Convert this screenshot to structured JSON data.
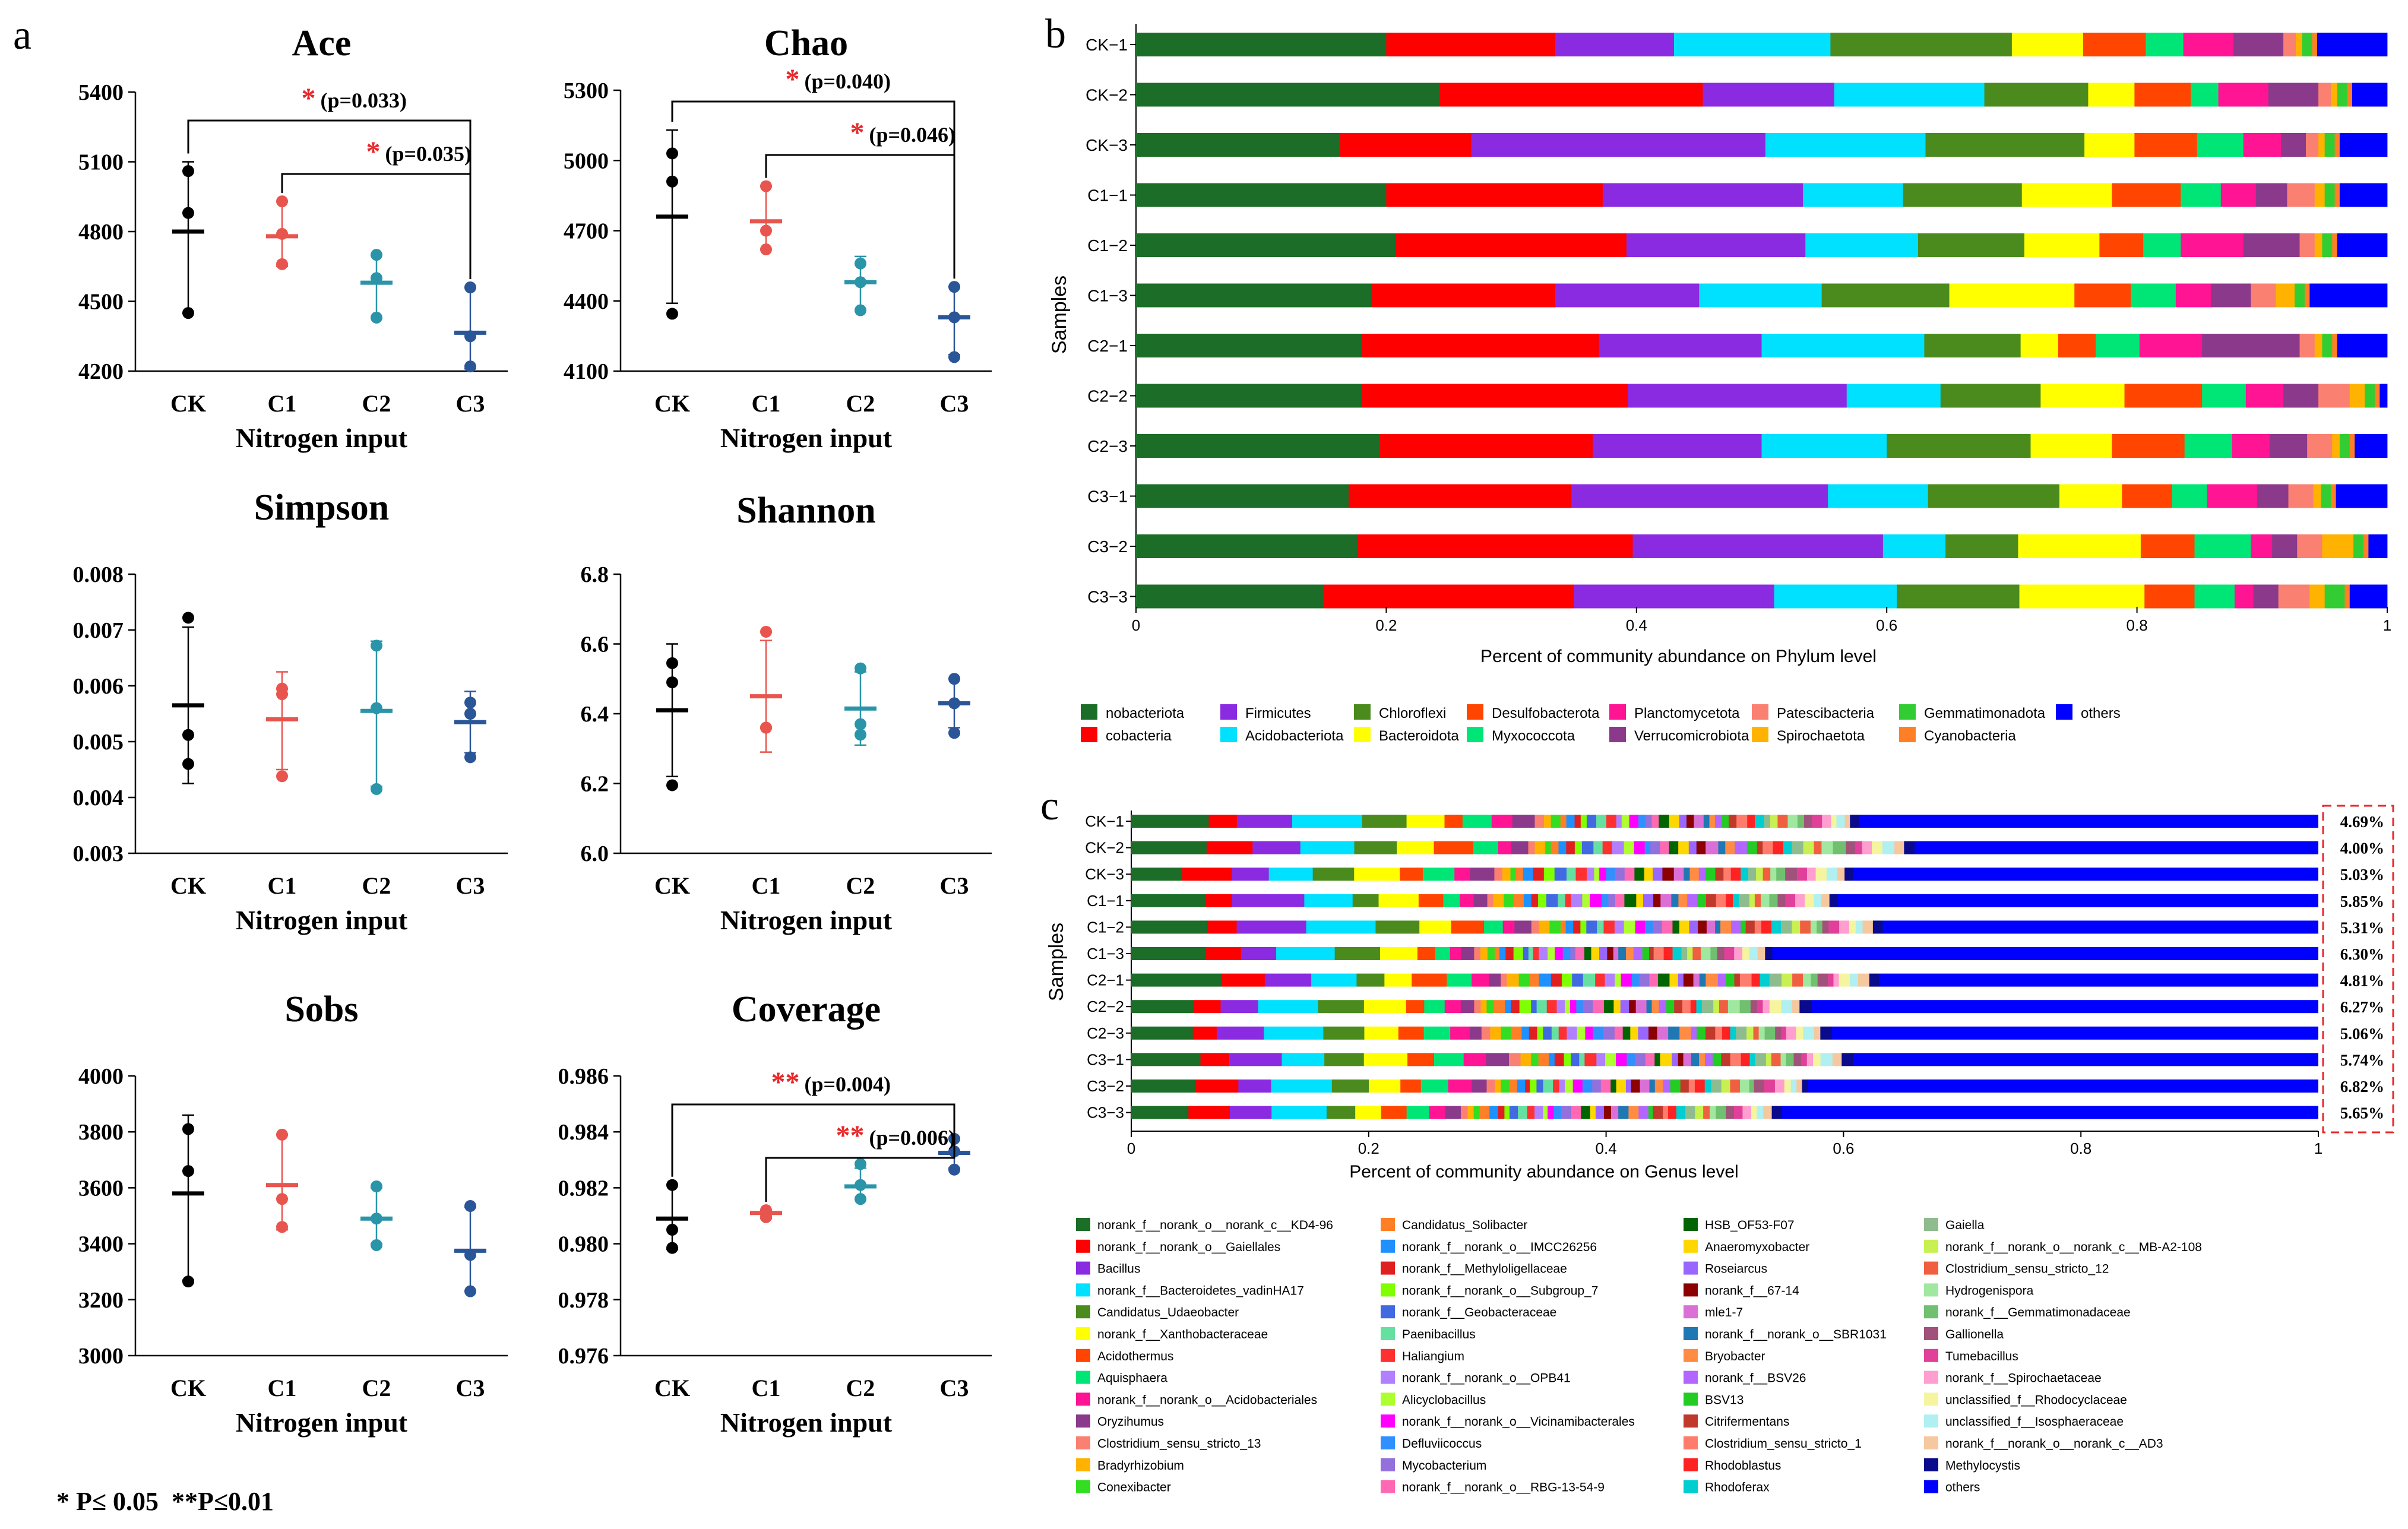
{
  "panel_labels": {
    "a": "a",
    "b": "b",
    "c": "c"
  },
  "footnote": "* P≤ 0.05  **P≤0.01",
  "diversity": {
    "groups": [
      "CK",
      "C1",
      "C2",
      "C3"
    ],
    "group_colors": [
      "#000000",
      "#e8554e",
      "#2a94a8",
      "#2a5597"
    ],
    "xlabel": "Nitrogen input",
    "sig_color": "#e8272a"
  },
  "chart_data": [
    {
      "type": "scatter",
      "title": "Ace",
      "ylim": [
        4200,
        5400
      ],
      "yticks": [
        "4200",
        "4500",
        "4800",
        "5100",
        "5400"
      ],
      "xlabel": "Nitrogen input",
      "categories": [
        "CK",
        "C1",
        "C2",
        "C3"
      ],
      "means": [
        4800,
        4780,
        4580,
        4365
      ],
      "errors": [
        [
          4450,
          5100
        ],
        [
          4650,
          4930
        ],
        [
          4430,
          4700
        ],
        [
          4210,
          4560
        ]
      ],
      "points": [
        [
          4450,
          4880,
          5060
        ],
        [
          4660,
          4790,
          4930
        ],
        [
          4430,
          4600,
          4700
        ],
        [
          4220,
          4350,
          4560
        ]
      ],
      "significance": [
        {
          "from": 0,
          "to": 3,
          "stars": "*",
          "label": "(p=0.033)"
        },
        {
          "from": 1,
          "to": 3,
          "stars": "*",
          "label": "(p=0.035)"
        }
      ]
    },
    {
      "type": "scatter",
      "title": "Chao",
      "ylim": [
        4100,
        5300
      ],
      "yticks": [
        "4100",
        "4400",
        "4700",
        "5000",
        "5300"
      ],
      "xlabel": "Nitrogen input",
      "categories": [
        "CK",
        "C1",
        "C2",
        "C3"
      ],
      "means": [
        4760,
        4740,
        4480,
        4330
      ],
      "errors": [
        [
          4390,
          5130
        ],
        [
          4620,
          4890
        ],
        [
          4360,
          4590
        ],
        [
          4170,
          4460
        ]
      ],
      "points": [
        [
          4345,
          4910,
          5030
        ],
        [
          4620,
          4700,
          4890
        ],
        [
          4360,
          4480,
          4560
        ],
        [
          4160,
          4330,
          4460
        ]
      ],
      "significance": [
        {
          "from": 0,
          "to": 3,
          "stars": "*",
          "label": "(p=0.040)"
        },
        {
          "from": 1,
          "to": 3,
          "stars": "*",
          "label": "(p=0.046)"
        }
      ]
    },
    {
      "type": "scatter",
      "title": "Simpson",
      "ylim": [
        0.003,
        0.008
      ],
      "yticks": [
        "0.003",
        "0.004",
        "0.005",
        "0.006",
        "0.007",
        "0.008"
      ],
      "xlabel": "Nitrogen input",
      "categories": [
        "CK",
        "C1",
        "C2",
        "C3"
      ],
      "means": [
        0.00565,
        0.0054,
        0.00555,
        0.00535
      ],
      "errors": [
        [
          0.00425,
          0.00705
        ],
        [
          0.0045,
          0.00625
        ],
        [
          0.0042,
          0.0068
        ],
        [
          0.0048,
          0.0059
        ]
      ],
      "points": [
        [
          0.0046,
          0.00512,
          0.00722
        ],
        [
          0.00438,
          0.00585,
          0.00595
        ],
        [
          0.00415,
          0.0056,
          0.00672
        ],
        [
          0.00472,
          0.0055,
          0.0057
        ]
      ],
      "significance": []
    },
    {
      "type": "scatter",
      "title": "Shannon",
      "ylim": [
        6.0,
        6.8
      ],
      "yticks": [
        "6.0",
        "6.2",
        "6.4",
        "6.6",
        "6.8"
      ],
      "xlabel": "Nitrogen input",
      "categories": [
        "CK",
        "C1",
        "C2",
        "C3"
      ],
      "means": [
        6.41,
        6.45,
        6.415,
        6.43
      ],
      "errors": [
        [
          6.22,
          6.6
        ],
        [
          6.29,
          6.61
        ],
        [
          6.31,
          6.52
        ],
        [
          6.36,
          6.5
        ]
      ],
      "points": [
        [
          6.195,
          6.49,
          6.545
        ],
        [
          6.36,
          6.36,
          6.635
        ],
        [
          6.34,
          6.37,
          6.53
        ],
        [
          6.345,
          6.43,
          6.5
        ]
      ],
      "significance": []
    },
    {
      "type": "scatter",
      "title": "Sobs",
      "ylim": [
        3000,
        4000
      ],
      "yticks": [
        "3000",
        "3200",
        "3400",
        "3600",
        "3800",
        "4000"
      ],
      "xlabel": "Nitrogen input",
      "categories": [
        "CK",
        "C1",
        "C2",
        "C3"
      ],
      "means": [
        3580,
        3610,
        3490,
        3375
      ],
      "errors": [
        [
          3270,
          3860
        ],
        [
          3450,
          3790
        ],
        [
          3400,
          3600
        ],
        [
          3230,
          3530
        ]
      ],
      "points": [
        [
          3265,
          3660,
          3810
        ],
        [
          3460,
          3560,
          3790
        ],
        [
          3395,
          3490,
          3605
        ],
        [
          3230,
          3360,
          3535
        ]
      ],
      "significance": []
    },
    {
      "type": "scatter",
      "title": "Coverage",
      "ylim": [
        0.976,
        0.986
      ],
      "yticks": [
        "0.976",
        "0.978",
        "0.980",
        "0.982",
        "0.984",
        "0.986"
      ],
      "xlabel": "Nitrogen input",
      "categories": [
        "CK",
        "C1",
        "C2",
        "C3"
      ],
      "means": [
        0.9809,
        0.9811,
        0.98205,
        0.98325
      ],
      "errors": [
        [
          0.9798,
          0.9821
        ],
        [
          0.9809,
          0.9812
        ],
        [
          0.9816,
          0.9827
        ],
        [
          0.9827,
          0.9838
        ]
      ],
      "points": [
        [
          0.97985,
          0.9805,
          0.9821
        ],
        [
          0.98095,
          0.98105,
          0.9812
        ],
        [
          0.9816,
          0.9821,
          0.98285
        ],
        [
          0.98265,
          0.9833,
          0.98375
        ]
      ],
      "significance": [
        {
          "from": 0,
          "to": 3,
          "stars": "**",
          "label": "(p=0.004)"
        },
        {
          "from": 1,
          "to": 3,
          "stars": "**",
          "label": "(p=0.006)"
        }
      ]
    },
    {
      "type": "bar",
      "subtype": "stacked-horizontal",
      "id": "phylum",
      "xlabel": "Percent of community abundance on Phylum level",
      "ylabel": "Samples",
      "xlim": [
        0,
        1
      ],
      "xticks": [
        "0",
        "0.2",
        "0.4",
        "0.6",
        "0.8",
        "1"
      ],
      "categories": [
        "CK−1",
        "CK−2",
        "CK−3",
        "C1−1",
        "C1−2",
        "C1−3",
        "C2−1",
        "C2−2",
        "C2−3",
        "C3−1",
        "C3−2",
        "C3−3"
      ],
      "series": [
        {
          "name": "nobacteriota",
          "color": "#1b6d28"
        },
        {
          "name": "cobacteria",
          "color": "#ff0000"
        },
        {
          "name": "Firmicutes",
          "color": "#8a2be2"
        },
        {
          "name": "Acidobacteriota",
          "color": "#00e0ff"
        },
        {
          "name": "Chloroflexi",
          "color": "#4b8b1e"
        },
        {
          "name": "Bacteroidota",
          "color": "#ffff00"
        },
        {
          "name": "Desulfobacterota",
          "color": "#ff4500"
        },
        {
          "name": "Myxococcota",
          "color": "#00e676"
        },
        {
          "name": "Planctomycetota",
          "color": "#ff1493"
        },
        {
          "name": "Verrucomicrobiota",
          "color": "#8b3a8b"
        },
        {
          "name": "Patescibacteria",
          "color": "#fa8072"
        },
        {
          "name": "Spirochaetota",
          "color": "#ffb300"
        },
        {
          "name": "Gemmatimonadota",
          "color": "#32cd32"
        },
        {
          "name": "Cyanobacteria",
          "color": "#ff7f27"
        },
        {
          "name": "others",
          "color": "#0000ff"
        }
      ],
      "values": [
        [
          0.2,
          0.135,
          0.095,
          0.125,
          0.145,
          0.057,
          0.05,
          0.03,
          0.04,
          0.04,
          0.01,
          0.005,
          0.008,
          0.004,
          0.056
        ],
        [
          0.243,
          0.21,
          0.105,
          0.12,
          0.083,
          0.037,
          0.045,
          0.022,
          0.04,
          0.04,
          0.01,
          0.005,
          0.008,
          0.004,
          0.028
        ],
        [
          0.163,
          0.105,
          0.235,
          0.128,
          0.127,
          0.04,
          0.05,
          0.037,
          0.03,
          0.02,
          0.01,
          0.005,
          0.008,
          0.004,
          0.038
        ],
        [
          0.2,
          0.173,
          0.16,
          0.08,
          0.095,
          0.072,
          0.055,
          0.032,
          0.028,
          0.025,
          0.022,
          0.008,
          0.008,
          0.004,
          0.038
        ],
        [
          0.207,
          0.185,
          0.143,
          0.09,
          0.085,
          0.06,
          0.035,
          0.03,
          0.05,
          0.045,
          0.012,
          0.006,
          0.008,
          0.004,
          0.04
        ],
        [
          0.188,
          0.147,
          0.115,
          0.098,
          0.102,
          0.1,
          0.045,
          0.036,
          0.028,
          0.032,
          0.02,
          0.015,
          0.008,
          0.004,
          0.062
        ],
        [
          0.18,
          0.19,
          0.13,
          0.13,
          0.077,
          0.03,
          0.03,
          0.035,
          0.05,
          0.078,
          0.012,
          0.006,
          0.008,
          0.004,
          0.04
        ],
        [
          0.18,
          0.213,
          0.175,
          0.075,
          0.08,
          0.067,
          0.062,
          0.035,
          0.03,
          0.028,
          0.025,
          0.012,
          0.008,
          0.004,
          0.006
        ],
        [
          0.195,
          0.17,
          0.135,
          0.1,
          0.115,
          0.065,
          0.058,
          0.038,
          0.03,
          0.03,
          0.02,
          0.006,
          0.008,
          0.004,
          0.026
        ],
        [
          0.17,
          0.178,
          0.205,
          0.08,
          0.105,
          0.05,
          0.04,
          0.028,
          0.04,
          0.025,
          0.02,
          0.006,
          0.008,
          0.004,
          0.041
        ],
        [
          0.177,
          0.22,
          0.2,
          0.05,
          0.058,
          0.098,
          0.043,
          0.045,
          0.017,
          0.02,
          0.02,
          0.025,
          0.008,
          0.004,
          0.015
        ],
        [
          0.15,
          0.2,
          0.16,
          0.098,
          0.098,
          0.1,
          0.04,
          0.032,
          0.015,
          0.02,
          0.025,
          0.012,
          0.016,
          0.004,
          0.03
        ]
      ]
    },
    {
      "type": "bar",
      "subtype": "stacked-horizontal",
      "id": "genus",
      "xlabel": "Percent of community abundance on Genus level",
      "ylabel": "Samples",
      "xlim": [
        0,
        1
      ],
      "xticks": [
        "0",
        "0.2",
        "0.4",
        "0.6",
        "0.8",
        "1"
      ],
      "categories": [
        "CK−1",
        "CK−2",
        "CK−3",
        "C1−1",
        "C1−2",
        "C1−3",
        "C2−1",
        "C2−2",
        "C2−3",
        "C3−1",
        "C3−2",
        "C3−3"
      ],
      "others_start": [
        0.613,
        0.66,
        0.608,
        0.595,
        0.633,
        0.54,
        0.63,
        0.573,
        0.59,
        0.608,
        0.57,
        0.548
      ],
      "right_labels": [
        "4.69%",
        "4.00%",
        "5.03%",
        "5.85%",
        "5.31%",
        "6.30%",
        "4.81%",
        "6.27%",
        "5.06%",
        "5.74%",
        "6.82%",
        "5.65%"
      ],
      "series": [
        {
          "name": "norank_f__norank_o__norank_c__KD4-96",
          "color": "#1b6d28"
        },
        {
          "name": "norank_f__norank_o__Gaiellales",
          "color": "#ff0000"
        },
        {
          "name": "Bacillus",
          "color": "#8a2be2"
        },
        {
          "name": "norank_f__Bacteroidetes_vadinHA17",
          "color": "#00e0ff"
        },
        {
          "name": "Candidatus_Udaeobacter",
          "color": "#4b8b1e"
        },
        {
          "name": "norank_f__Xanthobacteraceae",
          "color": "#ffff00"
        },
        {
          "name": "Acidothermus",
          "color": "#ff4500"
        },
        {
          "name": "Aquisphaera",
          "color": "#00e676"
        },
        {
          "name": "norank_f__norank_o__Acidobacteriales",
          "color": "#ff1493"
        },
        {
          "name": "Oryzihumus",
          "color": "#8b3a8b"
        },
        {
          "name": "Clostridium_sensu_stricto_13",
          "color": "#fa8072"
        },
        {
          "name": "Bradyrhizobium",
          "color": "#ffb300"
        },
        {
          "name": "Conexibacter",
          "color": "#33dd22"
        },
        {
          "name": "Candidatus_Solibacter",
          "color": "#ff7f27"
        },
        {
          "name": "norank_f__norank_o__IMCC26256",
          "color": "#1e90ff"
        },
        {
          "name": "norank_f__Methyloligellaceae",
          "color": "#e02020"
        },
        {
          "name": "norank_f__norank_o__Subgroup_7",
          "color": "#7fff00"
        },
        {
          "name": "norank_f__Geobacteraceae",
          "color": "#4169e1"
        },
        {
          "name": "Paenibacillus",
          "color": "#66e0a0"
        },
        {
          "name": "Haliangium",
          "color": "#ff3030"
        },
        {
          "name": "norank_f__norank_o__OPB41",
          "color": "#b080ff"
        },
        {
          "name": "Alicyclobacillus",
          "color": "#adff2f"
        },
        {
          "name": "norank_f__norank_o__Vicinamibacterales",
          "color": "#ff00ff"
        },
        {
          "name": "Defluviicoccus",
          "color": "#3090ff"
        },
        {
          "name": "Mycobacterium",
          "color": "#9370db"
        },
        {
          "name": "norank_f__norank_o__RBG-13-54-9",
          "color": "#ff69b4"
        },
        {
          "name": "HSB_OF53-F07",
          "color": "#006400"
        },
        {
          "name": "Anaeromyxobacter",
          "color": "#ffd700"
        },
        {
          "name": "Roseiarcus",
          "color": "#9966ff"
        },
        {
          "name": "norank_f__67-14",
          "color": "#8b0000"
        },
        {
          "name": "mle1-7",
          "color": "#da70d6"
        },
        {
          "name": "norank_f__norank_o__SBR1031",
          "color": "#1f77b4"
        },
        {
          "name": "Bryobacter",
          "color": "#ff8c42"
        },
        {
          "name": "norank_f__BSV26",
          "color": "#b266ff"
        },
        {
          "name": "BSV13",
          "color": "#22cc22"
        },
        {
          "name": "Citrifermentans",
          "color": "#c0392b"
        },
        {
          "name": "Clostridium_sensu_stricto_1",
          "color": "#ff7b6b"
        },
        {
          "name": "Rhodoblastus",
          "color": "#ff2222"
        },
        {
          "name": "Rhodoferax",
          "color": "#00ced1"
        },
        {
          "name": "Gaiella",
          "color": "#8fbc8f"
        },
        {
          "name": "norank_f__norank_o__norank_c__MB-A2-108",
          "color": "#c8f050"
        },
        {
          "name": "Clostridium_sensu_stricto_12",
          "color": "#f06040"
        },
        {
          "name": "Hydrogenispora",
          "color": "#a0e8a0"
        },
        {
          "name": "norank_f__Gemmatimonadaceae",
          "color": "#70c070"
        },
        {
          "name": "Gallionella",
          "color": "#a0527a"
        },
        {
          "name": "Tumebacillus",
          "color": "#e0409a"
        },
        {
          "name": "norank_f__Spirochaetaceae",
          "color": "#ff9ecf"
        },
        {
          "name": "unclassified_f__Rhodocyclaceae",
          "color": "#f5f5a0"
        },
        {
          "name": "unclassified_f__Isosphaeraceae",
          "color": "#b0f0f0"
        },
        {
          "name": "norank_f__norank_o__norank_c__AD3",
          "color": "#f5c8a0"
        },
        {
          "name": "Methylocystis",
          "color": "#0a0a8c"
        },
        {
          "name": "others",
          "color": "#0000ff"
        }
      ]
    }
  ]
}
